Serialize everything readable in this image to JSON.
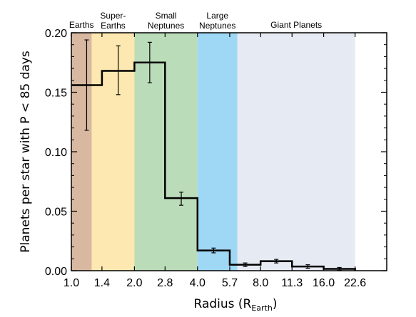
{
  "chart_data": {
    "type": "bar",
    "ylabel": "Planets per star with P < 85 days",
    "xlabel": {
      "main": "Radius (R",
      "sub": "Earth",
      "close": ")"
    },
    "x_scale": "log",
    "xlim": [
      1.0,
      32
    ],
    "ylim": [
      0,
      0.2
    ],
    "x_ticks": [
      "1.0",
      "1.4",
      "2.0",
      "2.8",
      "4.0",
      "5.7",
      "8.0",
      "11.3",
      "16.0",
      "22.6"
    ],
    "x_tick_values": [
      1.0,
      1.4,
      2.0,
      2.8,
      4.0,
      5.7,
      8.0,
      11.3,
      16.0,
      22.6
    ],
    "y_ticks": [
      "0.00",
      "0.05",
      "0.10",
      "0.15",
      "0.20"
    ],
    "y_tick_values": [
      0,
      0.05,
      0.1,
      0.15,
      0.2
    ],
    "bins": [
      {
        "x0": 1.0,
        "x1": 1.4,
        "value": 0.156,
        "err_low": 0.118,
        "err_high": 0.194
      },
      {
        "x0": 1.4,
        "x1": 2.0,
        "value": 0.168,
        "err_low": 0.148,
        "err_high": 0.189
      },
      {
        "x0": 2.0,
        "x1": 2.8,
        "value": 0.175,
        "err_low": 0.158,
        "err_high": 0.192
      },
      {
        "x0": 2.8,
        "x1": 4.0,
        "value": 0.061,
        "err_low": 0.055,
        "err_high": 0.066
      },
      {
        "x0": 4.0,
        "x1": 5.7,
        "value": 0.017,
        "err_low": 0.015,
        "err_high": 0.019
      },
      {
        "x0": 5.7,
        "x1": 8.0,
        "value": 0.005,
        "err_low": 0.0035,
        "err_high": 0.0065
      },
      {
        "x0": 8.0,
        "x1": 11.3,
        "value": 0.008,
        "err_low": 0.0065,
        "err_high": 0.0095
      },
      {
        "x0": 11.3,
        "x1": 16.0,
        "value": 0.0035,
        "err_low": 0.002,
        "err_high": 0.005
      },
      {
        "x0": 16.0,
        "x1": 22.6,
        "value": 0.0015,
        "err_low": 0.0003,
        "err_high": 0.0027
      }
    ],
    "regions": [
      {
        "name": "Earths",
        "lines": [
          "Earths"
        ],
        "x0": 1.0,
        "x1": 1.25,
        "color": "#d8b8a0"
      },
      {
        "name": "Super-Earths",
        "lines": [
          "Super-",
          "Earths"
        ],
        "x0": 1.25,
        "x1": 2.0,
        "color": "#fce8b0"
      },
      {
        "name": "Small Neptunes",
        "lines": [
          "Small",
          "Neptunes"
        ],
        "x0": 2.0,
        "x1": 4.0,
        "color": "#bbdcb8"
      },
      {
        "name": "Large Neptunes",
        "lines": [
          "Large",
          "Neptunes"
        ],
        "x0": 4.0,
        "x1": 6.2,
        "color": "#9fd8f5"
      },
      {
        "name": "Giant Planets",
        "lines": [
          "Giant Planets"
        ],
        "x0": 6.2,
        "x1": 22.6,
        "color": "#e6eaf2"
      }
    ],
    "colors": {
      "line": "#000000",
      "frame": "#000000",
      "background": "#ffffff"
    },
    "grid": false,
    "legend": "none"
  }
}
